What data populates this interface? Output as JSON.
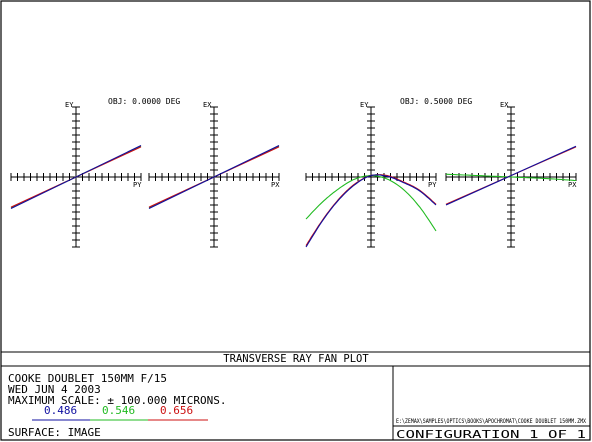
{
  "colors": {
    "wl1": "#1010a0",
    "wl2": "#22bb22",
    "wl3": "#cc1111",
    "axes": "#000000"
  },
  "plot_title": "TRANSVERSE RAY FAN PLOT",
  "info": {
    "lens": "COOKE DOUBLET 150MM F/15",
    "date": "WED JUN 4 2003",
    "scale": "MAXIMUM SCALE: ± 100.000 MICRONS.",
    "surface": "SURFACE: IMAGE"
  },
  "file": "E:\\ZEMAX\\SAMPLES\\OPTICS\\BOOKS\\APOCHROMAT\\COOKE DOUBLET 150MM.ZMX",
  "configuration": "CONFIGURATION 1 OF 1",
  "chart_data": [
    {
      "type": "line",
      "field": "OBJ: 0.0000 DEG",
      "xlabel": "PY",
      "ylabel": "EY",
      "xlim": [
        -1,
        1
      ],
      "ylim": [
        -100,
        100
      ],
      "series": [
        {
          "name": "0.486",
          "x": [
            -1,
            1
          ],
          "y": [
            -45,
            45
          ]
        },
        {
          "name": "0.546",
          "x": [
            -1,
            1
          ],
          "y": [
            -44,
            44
          ]
        },
        {
          "name": "0.656",
          "x": [
            -1,
            1
          ],
          "y": [
            -43,
            43
          ]
        }
      ]
    },
    {
      "type": "line",
      "field": "",
      "xlabel": "PX",
      "ylabel": "EX",
      "xlim": [
        -1,
        1
      ],
      "ylim": [
        -100,
        100
      ],
      "series": [
        {
          "name": "0.486",
          "x": [
            -1,
            1
          ],
          "y": [
            -45,
            45
          ]
        },
        {
          "name": "0.546",
          "x": [
            -1,
            1
          ],
          "y": [
            -44,
            44
          ]
        },
        {
          "name": "0.656",
          "x": [
            -1,
            1
          ],
          "y": [
            -43,
            43
          ]
        }
      ]
    },
    {
      "type": "line",
      "field": "OBJ: 0.5000 DEG",
      "xlabel": "PY",
      "ylabel": "EY",
      "xlim": [
        -1,
        1
      ],
      "ylim": [
        -100,
        100
      ],
      "series": [
        {
          "name": "0.486",
          "x": [
            -1,
            -0.75,
            -0.5,
            -0.25,
            0,
            0.25,
            0.5,
            0.75,
            1
          ],
          "y": [
            -100,
            -63,
            -33,
            -11,
            2,
            1,
            -8,
            -20,
            -40
          ]
        },
        {
          "name": "0.546",
          "x": [
            -1,
            -0.75,
            -0.5,
            -0.25,
            0,
            0.25,
            0.5,
            0.75,
            1
          ],
          "y": [
            -60,
            -36,
            -17,
            -3,
            2,
            -3,
            -18,
            -43,
            -77
          ]
        },
        {
          "name": "0.656",
          "x": [
            -1,
            -0.75,
            -0.5,
            -0.25,
            0,
            0.25,
            0.5,
            0.75,
            1
          ],
          "y": [
            -98,
            -62,
            -32,
            -10,
            2,
            2,
            -7,
            -19,
            -39
          ]
        }
      ]
    },
    {
      "type": "line",
      "field": "",
      "xlabel": "PX",
      "ylabel": "EX",
      "xlim": [
        -1,
        1
      ],
      "ylim": [
        -100,
        100
      ],
      "series": [
        {
          "name": "0.486",
          "x": [
            -1,
            1
          ],
          "y": [
            -40,
            44
          ]
        },
        {
          "name": "0.546",
          "x": [
            -1,
            -0.5,
            0,
            0.5,
            1
          ],
          "y": [
            4,
            2,
            0,
            -2,
            -5
          ]
        },
        {
          "name": "0.656",
          "x": [
            -1,
            1
          ],
          "y": [
            -39,
            43
          ]
        }
      ]
    }
  ]
}
